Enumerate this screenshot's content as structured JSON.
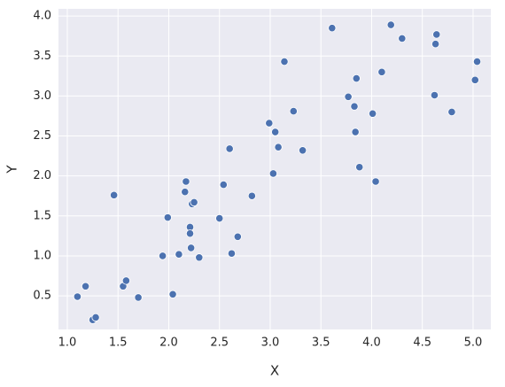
{
  "chart_data": {
    "type": "scatter",
    "x_label": "X",
    "y_label": "Y",
    "color": "#4c72b0",
    "background": "#eaeaf2",
    "grid": true,
    "x": [
      1.1,
      1.18,
      1.25,
      1.28,
      1.46,
      1.55,
      1.58,
      1.7,
      1.94,
      1.99,
      2.04,
      2.1,
      2.16,
      2.17,
      2.21,
      2.21,
      2.22,
      2.23,
      2.25,
      2.3,
      2.5,
      2.54,
      2.6,
      2.62,
      2.68,
      2.82,
      2.99,
      3.03,
      3.05,
      3.08,
      3.14,
      3.23,
      3.32,
      3.61,
      3.77,
      3.83,
      3.84,
      3.85,
      3.88,
      4.01,
      4.04,
      4.1,
      4.19,
      4.3,
      4.62,
      4.63,
      4.64,
      4.79,
      5.02,
      5.04
    ],
    "values": [
      0.49,
      0.62,
      0.2,
      0.23,
      1.76,
      0.62,
      0.69,
      0.48,
      1.0,
      1.48,
      0.52,
      1.02,
      1.8,
      1.93,
      1.36,
      1.28,
      1.1,
      1.65,
      1.67,
      0.98,
      1.47,
      1.89,
      2.34,
      1.03,
      1.24,
      1.75,
      2.66,
      2.03,
      2.55,
      2.36,
      3.43,
      2.81,
      2.32,
      3.85,
      2.99,
      2.87,
      2.55,
      3.22,
      2.11,
      2.78,
      1.93,
      3.3,
      3.89,
      3.72,
      3.01,
      3.65,
      3.77,
      2.8,
      3.2,
      3.43
    ],
    "xlim": [
      0.913,
      5.175
    ],
    "ylim": [
      0.08,
      4.09
    ],
    "xticks": [
      {
        "value": 1,
        "label": "1.0"
      },
      1.5,
      {
        "value": 2,
        "label": "2.0"
      },
      2.5,
      {
        "value": 3,
        "label": "3.0"
      },
      3.5,
      {
        "value": 4,
        "label": "4.0"
      },
      4.5,
      {
        "value": 5,
        "label": "5.0"
      }
    ],
    "yticks": [
      0.5,
      {
        "value": 1,
        "label": "1.0"
      },
      1.5,
      {
        "value": 2,
        "label": "2.0"
      },
      2.5,
      {
        "value": 3,
        "label": "3.0"
      },
      3.5,
      {
        "value": 4,
        "label": "4.0"
      }
    ]
  }
}
